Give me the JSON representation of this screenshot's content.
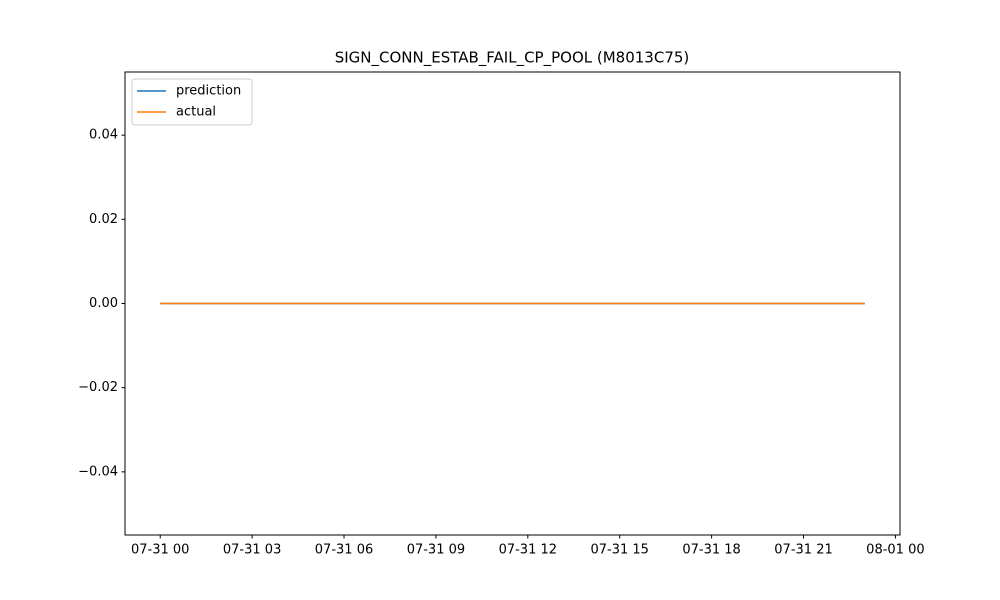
{
  "chart_data": {
    "type": "line",
    "title": "SIGN_CONN_ESTAB_FAIL_CP_POOL (M8013C75)",
    "x": [
      "07-31 00",
      "07-31 01",
      "07-31 02",
      "07-31 03",
      "07-31 04",
      "07-31 05",
      "07-31 06",
      "07-31 07",
      "07-31 08",
      "07-31 09",
      "07-31 10",
      "07-31 11",
      "07-31 12",
      "07-31 13",
      "07-31 14",
      "07-31 15",
      "07-31 16",
      "07-31 17",
      "07-31 18",
      "07-31 19",
      "07-31 20",
      "07-31 21",
      "07-31 22",
      "07-31 23"
    ],
    "series": [
      {
        "name": "prediction",
        "color": "#1f77b4",
        "values": [
          0,
          0,
          0,
          0,
          0,
          0,
          0,
          0,
          0,
          0,
          0,
          0,
          0,
          0,
          0,
          0,
          0,
          0,
          0,
          0,
          0,
          0,
          0,
          0
        ]
      },
      {
        "name": "actual",
        "color": "#ff7f0e",
        "values": [
          0,
          0,
          0,
          0,
          0,
          0,
          0,
          0,
          0,
          0,
          0,
          0,
          0,
          0,
          0,
          0,
          0,
          0,
          0,
          0,
          0,
          0,
          0,
          0
        ]
      }
    ],
    "xlim": [
      "07-30 22:51",
      "08-01 00:09"
    ],
    "xticks": [
      "07-31 00",
      "07-31 03",
      "07-31 06",
      "07-31 09",
      "07-31 12",
      "07-31 15",
      "07-31 18",
      "07-31 21",
      "08-01 00"
    ],
    "ylim": [
      -0.055,
      0.055
    ],
    "yticks": [
      {
        "value": -0.04,
        "label": "−0.04"
      },
      {
        "value": -0.02,
        "label": "−0.02"
      },
      {
        "value": 0,
        "label": "0.00"
      },
      0.02,
      0.04
    ],
    "grid": false,
    "legend": "upper left"
  }
}
